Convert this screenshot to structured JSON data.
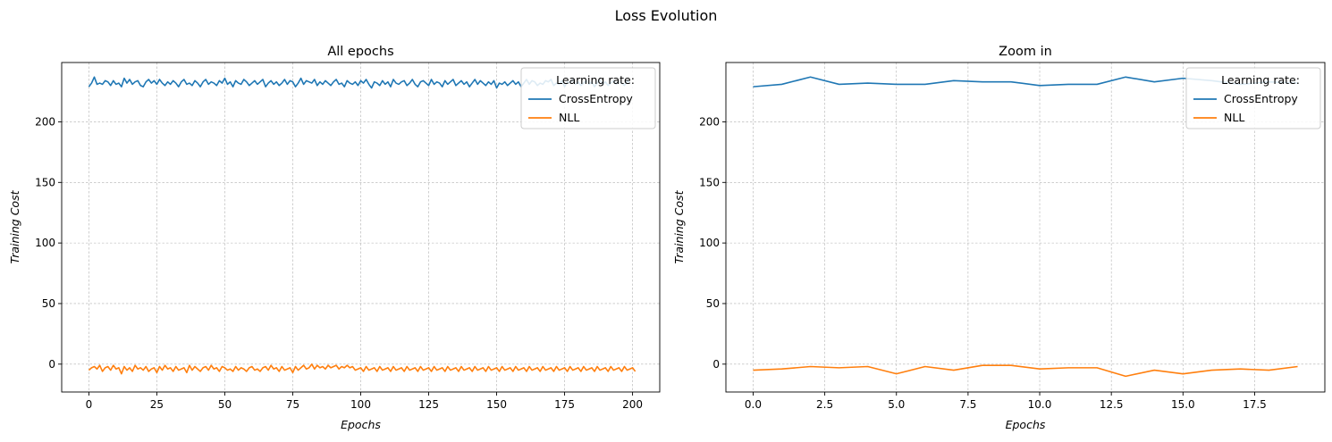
{
  "figure": {
    "suptitle": "Loss Evolution"
  },
  "colors": {
    "cross_entropy": "#1f77b4",
    "nll": "#ff7f0e",
    "grid": "#b0b0b0"
  },
  "chart_data": [
    {
      "type": "line",
      "title": "All epochs",
      "xlabel": "Epochs",
      "ylabel": "Training Cost",
      "xlim": [
        -10,
        210
      ],
      "ylim": [
        -23,
        249
      ],
      "xticks": [
        0,
        25,
        50,
        75,
        100,
        125,
        150,
        175,
        200
      ],
      "yticks": [
        0,
        50,
        100,
        150,
        200
      ],
      "grid": true,
      "legend": {
        "title": "Learning rate:",
        "placement": "upper-right"
      },
      "series": [
        {
          "name": "CrossEntropy",
          "values": [
            229,
            232,
            237,
            231,
            232,
            231,
            234,
            233,
            230,
            234,
            231,
            232,
            229,
            236,
            232,
            235,
            231,
            233,
            234,
            230,
            229,
            233,
            235,
            232,
            234,
            231,
            235,
            232,
            230,
            233,
            231,
            234,
            232,
            229,
            233,
            235,
            231,
            232,
            230,
            234,
            232,
            229,
            233,
            235,
            231,
            233,
            232,
            230,
            234,
            232,
            236,
            231,
            233,
            229,
            234,
            232,
            231,
            235,
            233,
            230,
            232,
            234,
            231,
            233,
            235,
            229,
            232,
            234,
            231,
            233,
            230,
            232,
            235,
            231,
            234,
            233,
            229,
            232,
            236,
            231,
            234,
            233,
            232,
            235,
            230,
            233,
            231,
            234,
            232,
            230,
            233,
            235,
            231,
            232,
            229,
            234,
            232,
            231,
            233,
            230,
            234,
            232,
            235,
            231,
            228,
            233,
            232,
            230,
            234,
            231,
            233,
            229,
            235,
            232,
            231,
            233,
            234,
            230,
            232,
            235,
            231,
            229,
            233,
            234,
            232,
            230,
            235,
            231,
            233,
            232,
            229,
            234,
            231,
            233,
            235,
            230,
            232,
            234,
            231,
            233,
            229,
            232,
            235,
            231,
            234,
            232,
            230,
            233,
            231,
            234,
            228,
            232,
            231,
            233,
            230,
            232,
            234,
            231,
            233,
            229,
            232,
            235,
            231,
            234,
            233,
            230,
            232,
            231,
            234,
            233,
            235,
            230,
            232,
            231,
            234,
            229,
            233,
            232,
            235,
            231,
            233,
            230,
            232,
            234,
            231,
            233,
            229,
            232,
            235,
            231,
            233,
            230,
            232,
            234,
            231,
            233,
            232,
            230,
            234,
            232
          ]
        },
        {
          "name": "NLL",
          "values": [
            -5,
            -3,
            -2,
            -4,
            -1,
            -6,
            -3,
            -2,
            -5,
            -1,
            -4,
            -3,
            -8,
            -2,
            -5,
            -3,
            -6,
            -1,
            -4,
            -3,
            -5,
            -2,
            -6,
            -4,
            -3,
            -7,
            -2,
            -5,
            -1,
            -4,
            -3,
            -6,
            -2,
            -5,
            -4,
            -3,
            -7,
            -1,
            -5,
            -2,
            -4,
            -6,
            -3,
            -2,
            -5,
            -1,
            -4,
            -3,
            -6,
            -2,
            -3,
            -5,
            -4,
            -6,
            -2,
            -5,
            -3,
            -4,
            -6,
            -3,
            -2,
            -5,
            -4,
            -6,
            -3,
            -2,
            -5,
            -1,
            -4,
            -3,
            -6,
            -2,
            -5,
            -4,
            -3,
            -7,
            -2,
            -5,
            -3,
            -1,
            -4,
            -3,
            0,
            -4,
            -1,
            -3,
            -2,
            -4,
            -1,
            -3,
            -2,
            -1,
            -4,
            -2,
            -3,
            -1,
            -3,
            -2,
            -5,
            -4,
            -3,
            -6,
            -2,
            -5,
            -4,
            -3,
            -6,
            -2,
            -5,
            -4,
            -3,
            -6,
            -2,
            -5,
            -4,
            -3,
            -6,
            -2,
            -5,
            -4,
            -3,
            -6,
            -2,
            -5,
            -4,
            -3,
            -6,
            -2,
            -5,
            -4,
            -3,
            -6,
            -2,
            -5,
            -4,
            -3,
            -6,
            -2,
            -5,
            -4,
            -3,
            -6,
            -2,
            -5,
            -4,
            -3,
            -6,
            -2,
            -5,
            -4,
            -3,
            -6,
            -2,
            -5,
            -4,
            -3,
            -6,
            -2,
            -5,
            -4,
            -3,
            -6,
            -2,
            -5,
            -4,
            -3,
            -6,
            -2,
            -5,
            -4,
            -3,
            -6,
            -2,
            -5,
            -4,
            -3,
            -6,
            -2,
            -5,
            -4,
            -3,
            -6,
            -2,
            -5,
            -4,
            -3,
            -6,
            -2,
            -5,
            -4,
            -3,
            -6,
            -2,
            -5,
            -4,
            -3,
            -6,
            -2,
            -5,
            -4,
            -3,
            -6
          ]
        }
      ]
    },
    {
      "type": "line",
      "title": "Zoom in",
      "xlabel": "Epochs",
      "ylabel": "Training Cost",
      "xlim": [
        -0.95,
        19.95
      ],
      "ylim": [
        -23,
        249
      ],
      "xticks": [
        0.0,
        2.5,
        5.0,
        7.5,
        10.0,
        12.5,
        15.0,
        17.5
      ],
      "yticks": [
        0,
        50,
        100,
        150,
        200
      ],
      "grid": true,
      "legend": {
        "title": "Learning rate:",
        "placement": "upper-right"
      },
      "series": [
        {
          "name": "CrossEntropy",
          "values": [
            229,
            231,
            237,
            231,
            232,
            231,
            231,
            234,
            233,
            233,
            230,
            231,
            231,
            237,
            233,
            236,
            234,
            231,
            233,
            232
          ]
        },
        {
          "name": "NLL",
          "values": [
            -5,
            -4,
            -2,
            -3,
            -2,
            -8,
            -2,
            -5,
            -1,
            -1,
            -4,
            -3,
            -3,
            -10,
            -5,
            -8,
            -5,
            -4,
            -5,
            -2
          ]
        }
      ]
    }
  ]
}
